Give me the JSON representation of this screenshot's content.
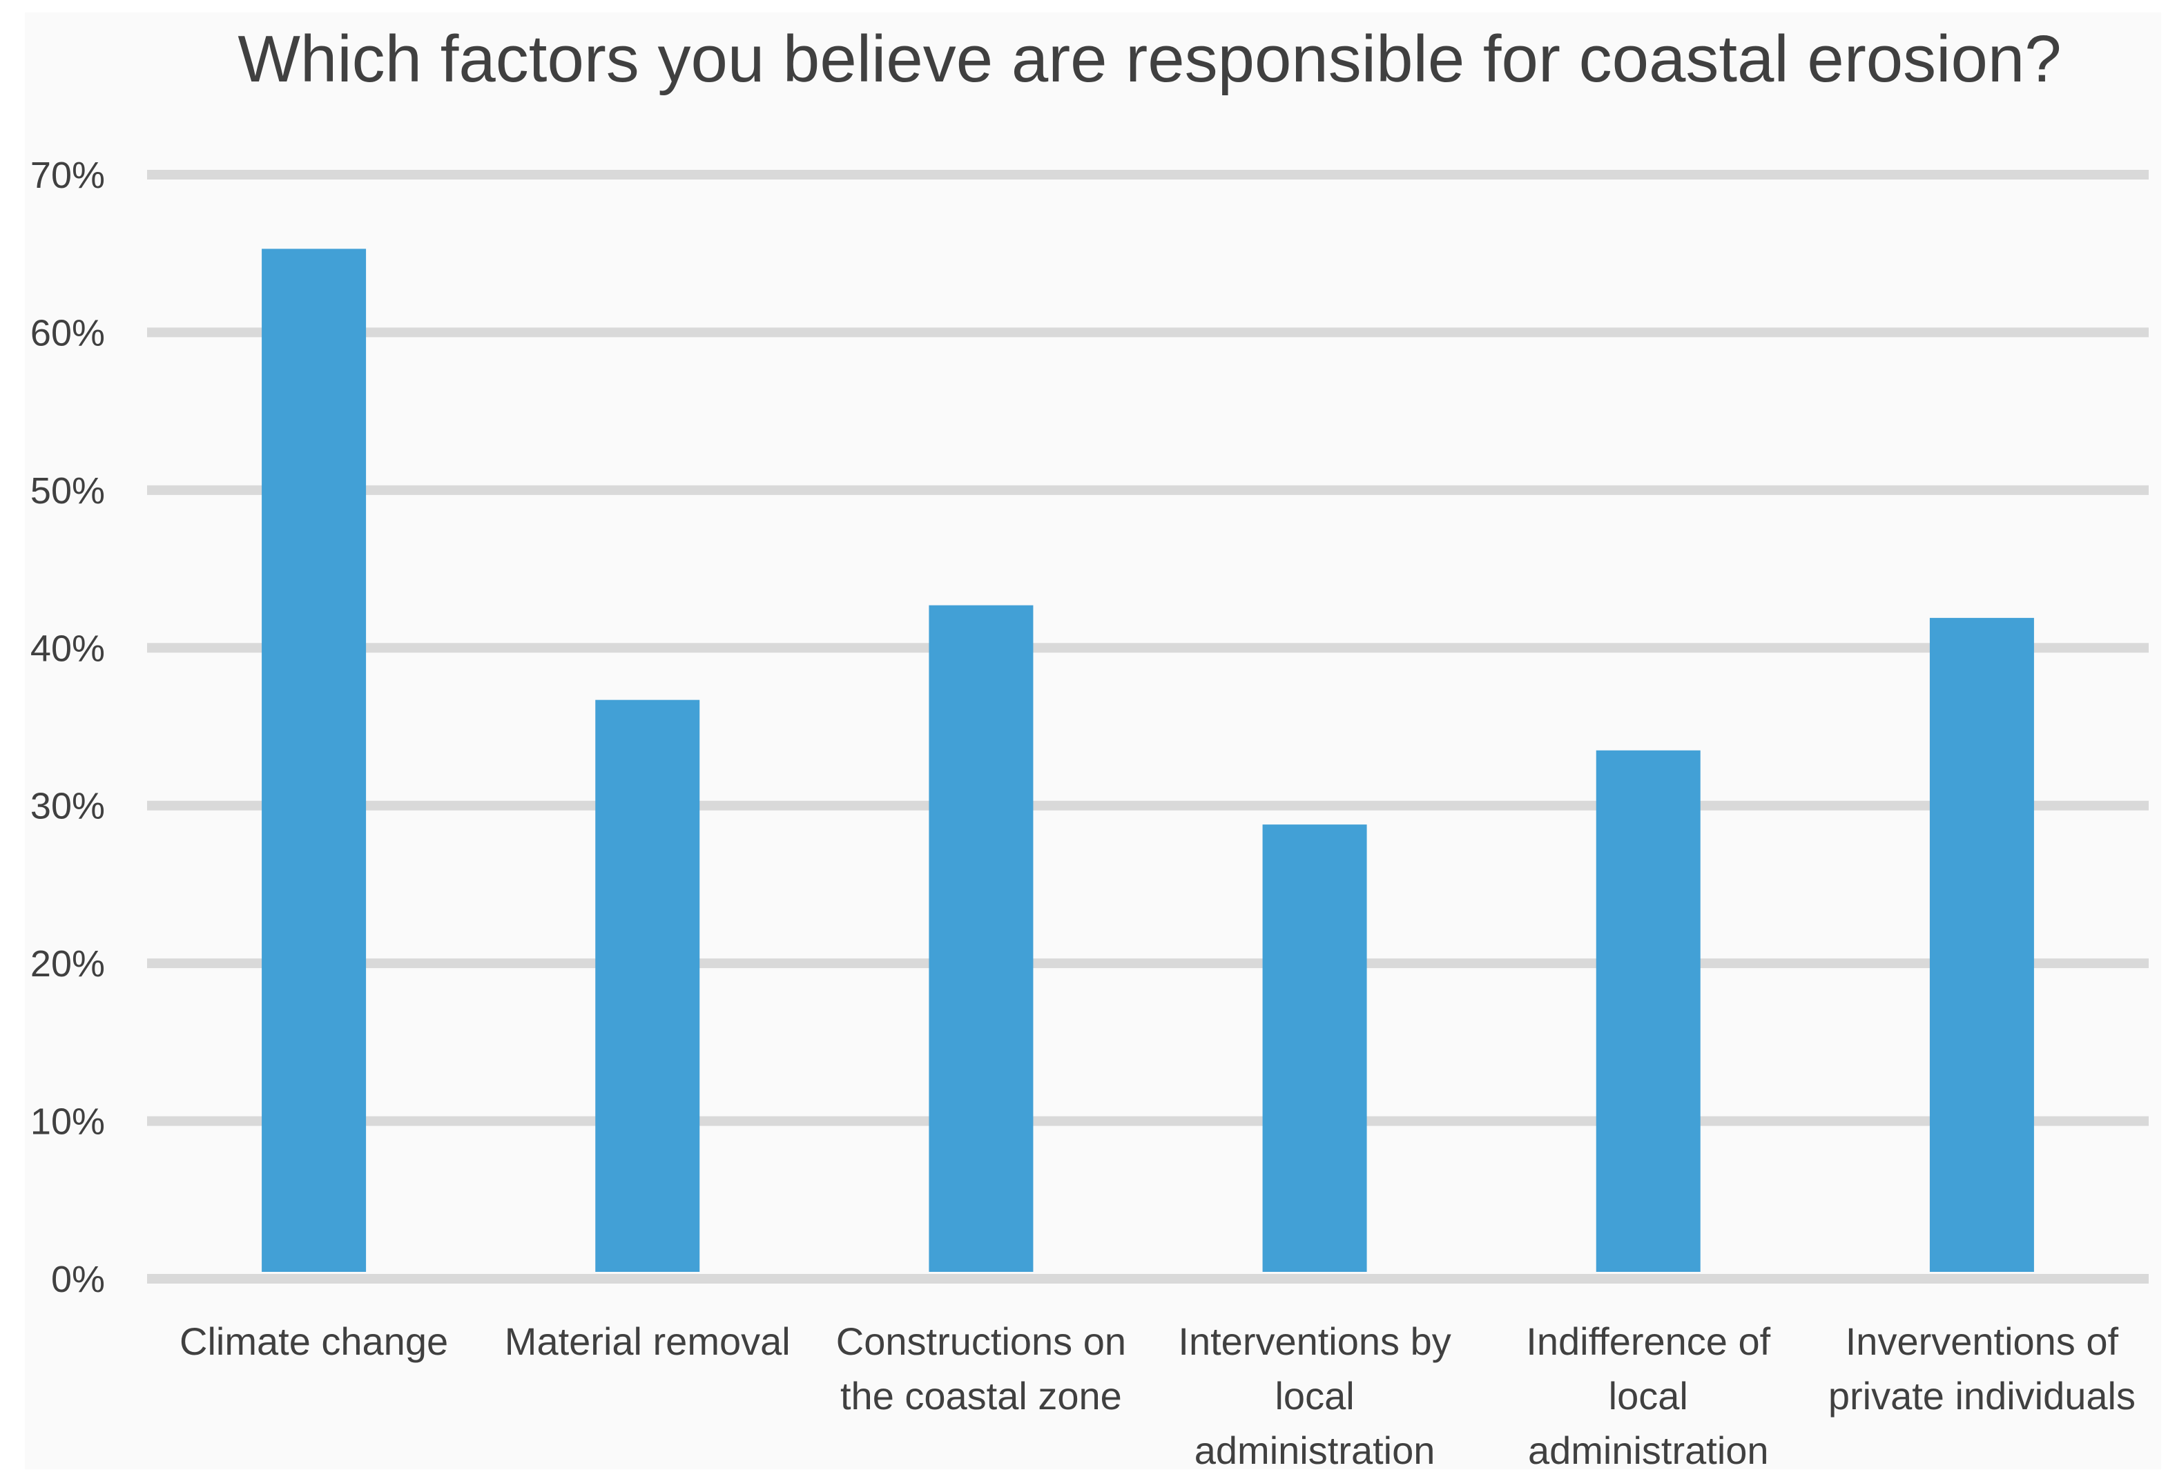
{
  "chart_data": {
    "type": "bar",
    "title": "Which factors you believe are responsible for coastal erosion?",
    "categories": [
      "Climate change",
      "Material removal",
      "Constructions on the coastal zone",
      "Interventions by local administration",
      "Indifference of local administration",
      "Inverventions of private individuals"
    ],
    "category_lines": [
      [
        "Climate change"
      ],
      [
        "Material removal"
      ],
      [
        "Constructions on",
        "the coastal zone"
      ],
      [
        "Interventions by",
        "local",
        "administration"
      ],
      [
        "Indifference of",
        "local",
        "administration"
      ],
      [
        "Inverventions of",
        "private individuals"
      ]
    ],
    "values": [
      65.3,
      36.7,
      42.7,
      28.8,
      33.5,
      41.9
    ],
    "ylim": [
      0,
      70
    ],
    "yticks": [
      0,
      10,
      20,
      30,
      40,
      50,
      60,
      70
    ],
    "ytick_labels": [
      "0%",
      "10%",
      "20%",
      "30%",
      "40%",
      "50%",
      "60%",
      "70%"
    ],
    "xlabel": "",
    "ylabel": "",
    "grid": true,
    "legend": "none",
    "colors": {
      "bar": "#42a0d6",
      "grid": "#d9d9d9",
      "text": "#404040",
      "background": "#fafafa"
    }
  }
}
